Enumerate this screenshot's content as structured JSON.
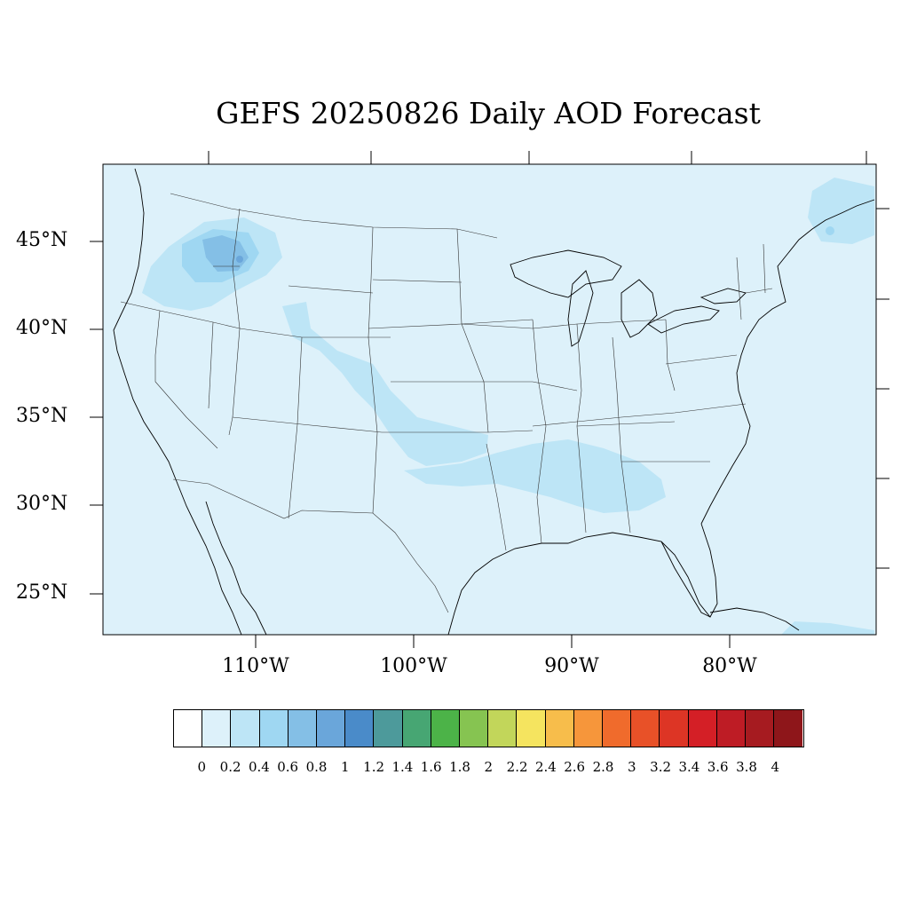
{
  "title": "GEFS 20250826 Daily AOD Forecast",
  "lat_labels": [
    "45°N",
    "40°N",
    "35°N",
    "30°N",
    "25°N"
  ],
  "lon_labels": [
    "110°W",
    "100°W",
    "90°W",
    "80°W"
  ],
  "colorbar": {
    "colors": [
      "#ffffff",
      "#ddf1fa",
      "#bde5f6",
      "#9fd7f2",
      "#84bfe6",
      "#6aa6da",
      "#4a8bc9",
      "#4d9a9b",
      "#47a673",
      "#4cb348",
      "#86c451",
      "#c2d65a",
      "#f5e45f",
      "#f7bd4b",
      "#f6963b",
      "#f06b2c",
      "#e85128",
      "#dd3525",
      "#d41f26",
      "#be1c25",
      "#a61b20",
      "#8e161a"
    ],
    "labels": [
      "0",
      "0.2",
      "0.4",
      "0.6",
      "0.8",
      "1",
      "1.2",
      "1.4",
      "1.6",
      "1.8",
      "2",
      "2.2",
      "2.4",
      "2.6",
      "2.8",
      "3",
      "3.2",
      "3.4",
      "3.6",
      "3.8",
      "4"
    ]
  },
  "map": {
    "background_color": "#ddf1fa",
    "aod_levels": {
      "low": "#bde5f6",
      "moderate": "#9fd7f2",
      "high": "#84bfe6",
      "peak": "#6aa6da"
    }
  }
}
